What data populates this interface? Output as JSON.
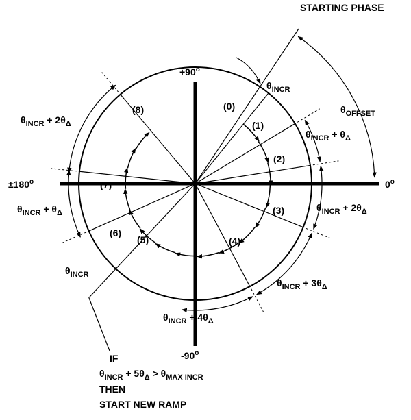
{
  "starting_phase": "STARTING PHASE",
  "axes": [
    {
      "parts": [
        {
          "t": "+90"
        },
        {
          "sup": "o"
        }
      ]
    },
    {
      "parts": [
        {
          "t": "-90"
        },
        {
          "sup": "o"
        }
      ]
    },
    {
      "parts": [
        {
          "t": "0"
        },
        {
          "sup": "o"
        }
      ]
    },
    {
      "parts": [
        {
          "t": "±180"
        },
        {
          "sup": "o"
        }
      ]
    }
  ],
  "rays": [
    "(0)",
    "(1)",
    "(2)",
    "(3)",
    "(4)",
    "(5)",
    "(6)",
    "(7)",
    "(8)"
  ],
  "labels": [
    {
      "parts": [
        {
          "t": "θ"
        },
        {
          "sub": "INCR"
        }
      ]
    },
    {
      "parts": [
        {
          "t": "θ"
        },
        {
          "sub": "OFFSET"
        }
      ]
    },
    {
      "parts": [
        {
          "t": "θ"
        },
        {
          "sub": "INCR"
        },
        {
          "t": " + θ"
        },
        {
          "sub": "Δ"
        }
      ]
    },
    {
      "parts": [
        {
          "t": "θ"
        },
        {
          "sub": "INCR"
        },
        {
          "t": " + 2θ"
        },
        {
          "sub": "Δ"
        }
      ]
    },
    {
      "parts": [
        {
          "t": "θ"
        },
        {
          "sub": "INCR"
        },
        {
          "t": " + 3θ"
        },
        {
          "sub": "Δ"
        }
      ]
    },
    {
      "parts": [
        {
          "t": "θ"
        },
        {
          "sub": "INCR"
        },
        {
          "t": " + 4θ"
        },
        {
          "sub": "Δ"
        }
      ]
    },
    {
      "parts": [
        {
          "t": "θ"
        },
        {
          "sub": "INCR"
        }
      ]
    },
    {
      "parts": [
        {
          "t": "θ"
        },
        {
          "sub": "INCR"
        },
        {
          "t": " + θ"
        },
        {
          "sub": "Δ"
        }
      ]
    },
    {
      "parts": [
        {
          "t": "θ"
        },
        {
          "sub": "INCR"
        },
        {
          "t": " + 2θ"
        },
        {
          "sub": "Δ"
        }
      ]
    }
  ],
  "note": [
    {
      "parts": [
        {
          "t": "IF"
        }
      ]
    },
    {
      "parts": [
        {
          "t": "θ"
        },
        {
          "sub": "INCR"
        },
        {
          "t": " + 5θ"
        },
        {
          "sub": "Δ"
        },
        {
          "t": " > θ"
        },
        {
          "sub": "MAX INCR"
        }
      ]
    },
    {
      "parts": [
        {
          "t": "THEN"
        }
      ]
    },
    {
      "parts": [
        {
          "t": "START NEW RAMP"
        }
      ]
    }
  ]
}
